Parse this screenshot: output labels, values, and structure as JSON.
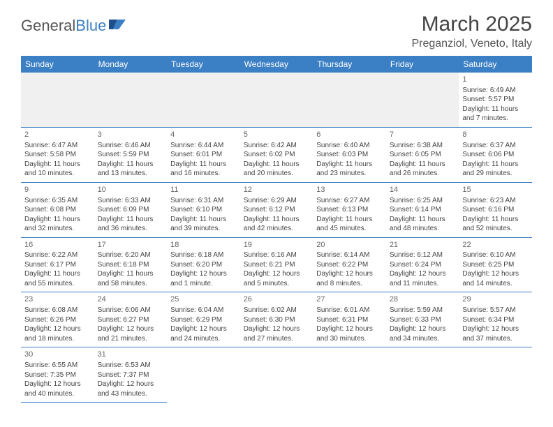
{
  "brand": {
    "part1": "General",
    "part2": "Blue"
  },
  "title": "March 2025",
  "location": "Preganziol, Veneto, Italy",
  "colors": {
    "accent": "#3b7fc4",
    "text": "#444",
    "header_bg": "#3b7fc4"
  },
  "day_headers": [
    "Sunday",
    "Monday",
    "Tuesday",
    "Wednesday",
    "Thursday",
    "Friday",
    "Saturday"
  ],
  "weeks": [
    [
      null,
      null,
      null,
      null,
      null,
      null,
      {
        "n": "1",
        "sr": "Sunrise: 6:49 AM",
        "ss": "Sunset: 5:57 PM",
        "dl": "Daylight: 11 hours and 7 minutes."
      }
    ],
    [
      {
        "n": "2",
        "sr": "Sunrise: 6:47 AM",
        "ss": "Sunset: 5:58 PM",
        "dl": "Daylight: 11 hours and 10 minutes."
      },
      {
        "n": "3",
        "sr": "Sunrise: 6:46 AM",
        "ss": "Sunset: 5:59 PM",
        "dl": "Daylight: 11 hours and 13 minutes."
      },
      {
        "n": "4",
        "sr": "Sunrise: 6:44 AM",
        "ss": "Sunset: 6:01 PM",
        "dl": "Daylight: 11 hours and 16 minutes."
      },
      {
        "n": "5",
        "sr": "Sunrise: 6:42 AM",
        "ss": "Sunset: 6:02 PM",
        "dl": "Daylight: 11 hours and 20 minutes."
      },
      {
        "n": "6",
        "sr": "Sunrise: 6:40 AM",
        "ss": "Sunset: 6:03 PM",
        "dl": "Daylight: 11 hours and 23 minutes."
      },
      {
        "n": "7",
        "sr": "Sunrise: 6:38 AM",
        "ss": "Sunset: 6:05 PM",
        "dl": "Daylight: 11 hours and 26 minutes."
      },
      {
        "n": "8",
        "sr": "Sunrise: 6:37 AM",
        "ss": "Sunset: 6:06 PM",
        "dl": "Daylight: 11 hours and 29 minutes."
      }
    ],
    [
      {
        "n": "9",
        "sr": "Sunrise: 6:35 AM",
        "ss": "Sunset: 6:08 PM",
        "dl": "Daylight: 11 hours and 32 minutes."
      },
      {
        "n": "10",
        "sr": "Sunrise: 6:33 AM",
        "ss": "Sunset: 6:09 PM",
        "dl": "Daylight: 11 hours and 36 minutes."
      },
      {
        "n": "11",
        "sr": "Sunrise: 6:31 AM",
        "ss": "Sunset: 6:10 PM",
        "dl": "Daylight: 11 hours and 39 minutes."
      },
      {
        "n": "12",
        "sr": "Sunrise: 6:29 AM",
        "ss": "Sunset: 6:12 PM",
        "dl": "Daylight: 11 hours and 42 minutes."
      },
      {
        "n": "13",
        "sr": "Sunrise: 6:27 AM",
        "ss": "Sunset: 6:13 PM",
        "dl": "Daylight: 11 hours and 45 minutes."
      },
      {
        "n": "14",
        "sr": "Sunrise: 6:25 AM",
        "ss": "Sunset: 6:14 PM",
        "dl": "Daylight: 11 hours and 48 minutes."
      },
      {
        "n": "15",
        "sr": "Sunrise: 6:23 AM",
        "ss": "Sunset: 6:16 PM",
        "dl": "Daylight: 11 hours and 52 minutes."
      }
    ],
    [
      {
        "n": "16",
        "sr": "Sunrise: 6:22 AM",
        "ss": "Sunset: 6:17 PM",
        "dl": "Daylight: 11 hours and 55 minutes."
      },
      {
        "n": "17",
        "sr": "Sunrise: 6:20 AM",
        "ss": "Sunset: 6:18 PM",
        "dl": "Daylight: 11 hours and 58 minutes."
      },
      {
        "n": "18",
        "sr": "Sunrise: 6:18 AM",
        "ss": "Sunset: 6:20 PM",
        "dl": "Daylight: 12 hours and 1 minute."
      },
      {
        "n": "19",
        "sr": "Sunrise: 6:16 AM",
        "ss": "Sunset: 6:21 PM",
        "dl": "Daylight: 12 hours and 5 minutes."
      },
      {
        "n": "20",
        "sr": "Sunrise: 6:14 AM",
        "ss": "Sunset: 6:22 PM",
        "dl": "Daylight: 12 hours and 8 minutes."
      },
      {
        "n": "21",
        "sr": "Sunrise: 6:12 AM",
        "ss": "Sunset: 6:24 PM",
        "dl": "Daylight: 12 hours and 11 minutes."
      },
      {
        "n": "22",
        "sr": "Sunrise: 6:10 AM",
        "ss": "Sunset: 6:25 PM",
        "dl": "Daylight: 12 hours and 14 minutes."
      }
    ],
    [
      {
        "n": "23",
        "sr": "Sunrise: 6:08 AM",
        "ss": "Sunset: 6:26 PM",
        "dl": "Daylight: 12 hours and 18 minutes."
      },
      {
        "n": "24",
        "sr": "Sunrise: 6:06 AM",
        "ss": "Sunset: 6:27 PM",
        "dl": "Daylight: 12 hours and 21 minutes."
      },
      {
        "n": "25",
        "sr": "Sunrise: 6:04 AM",
        "ss": "Sunset: 6:29 PM",
        "dl": "Daylight: 12 hours and 24 minutes."
      },
      {
        "n": "26",
        "sr": "Sunrise: 6:02 AM",
        "ss": "Sunset: 6:30 PM",
        "dl": "Daylight: 12 hours and 27 minutes."
      },
      {
        "n": "27",
        "sr": "Sunrise: 6:01 AM",
        "ss": "Sunset: 6:31 PM",
        "dl": "Daylight: 12 hours and 30 minutes."
      },
      {
        "n": "28",
        "sr": "Sunrise: 5:59 AM",
        "ss": "Sunset: 6:33 PM",
        "dl": "Daylight: 12 hours and 34 minutes."
      },
      {
        "n": "29",
        "sr": "Sunrise: 5:57 AM",
        "ss": "Sunset: 6:34 PM",
        "dl": "Daylight: 12 hours and 37 minutes."
      }
    ],
    [
      {
        "n": "30",
        "sr": "Sunrise: 6:55 AM",
        "ss": "Sunset: 7:35 PM",
        "dl": "Daylight: 12 hours and 40 minutes."
      },
      {
        "n": "31",
        "sr": "Sunrise: 6:53 AM",
        "ss": "Sunset: 7:37 PM",
        "dl": "Daylight: 12 hours and 43 minutes."
      },
      null,
      null,
      null,
      null,
      null
    ]
  ]
}
